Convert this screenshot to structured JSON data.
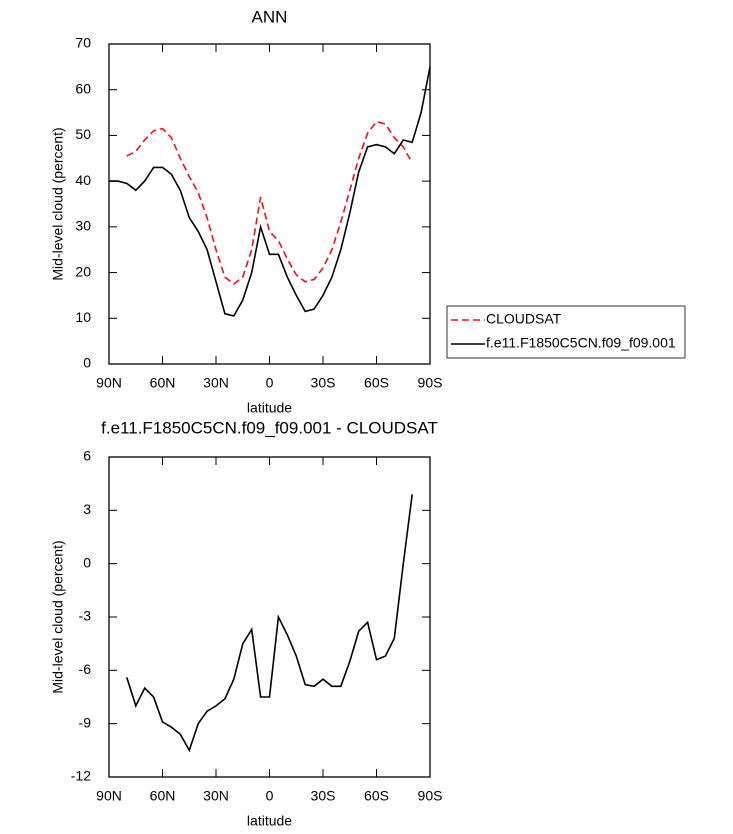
{
  "chart_data": [
    {
      "type": "line",
      "title": "ANN",
      "xlabel": "latitude",
      "ylabel": "Mid-level cloud (percent)",
      "x": [
        90,
        85,
        80,
        75,
        70,
        65,
        60,
        55,
        50,
        45,
        40,
        35,
        30,
        25,
        20,
        15,
        10,
        5,
        0,
        -5,
        -10,
        -15,
        -20,
        -25,
        -30,
        -35,
        -40,
        -45,
        -50,
        -55,
        -60,
        -65,
        -70,
        -75,
        -80,
        -85,
        -90
      ],
      "series": [
        {
          "name": "CLOUDSAT",
          "color": "#e8141c",
          "dash": true,
          "values": [
            null,
            null,
            45.5,
            46.5,
            49,
            51,
            51.5,
            49.5,
            45,
            41,
            37.5,
            32,
            25,
            19,
            17.5,
            19,
            25,
            36.5,
            29,
            27,
            23,
            19.5,
            18,
            18.5,
            21,
            25,
            31,
            38,
            45,
            50.5,
            53,
            52.5,
            49.5,
            47.5,
            44,
            null,
            null
          ]
        },
        {
          "name": "f.e11.F1850C5CN.f09_f09.001",
          "color": "#000000",
          "dash": false,
          "values": [
            40,
            40,
            39.5,
            38,
            40,
            43,
            43,
            41.5,
            38,
            32,
            29,
            25,
            18,
            11,
            10.5,
            14,
            20,
            30,
            24,
            24,
            19,
            15,
            11.5,
            12,
            15,
            19,
            25,
            33,
            42,
            47.5,
            48,
            47.5,
            46,
            49,
            48.5,
            55,
            65
          ]
        }
      ],
      "xlim": [
        90,
        -90
      ],
      "xticks": [
        {
          "value": 90,
          "label": "90N"
        },
        {
          "value": 60,
          "label": "60N"
        },
        {
          "value": 30,
          "label": "30N"
        },
        0,
        {
          "value": -30,
          "label": "30S"
        },
        {
          "value": -60,
          "label": "60S"
        },
        {
          "value": -90,
          "label": "90S"
        }
      ],
      "ylim": [
        0,
        70
      ],
      "yticks": [
        0,
        10,
        20,
        30,
        40,
        50,
        60,
        70
      ],
      "legend": "right"
    },
    {
      "type": "line",
      "title": "f.e11.F1850C5CN.f09_f09.001 - CLOUDSAT",
      "xlabel": "latitude",
      "ylabel": "Mid-level cloud (percent)",
      "x": [
        80,
        75,
        70,
        65,
        60,
        55,
        50,
        45,
        40,
        35,
        30,
        25,
        20,
        15,
        10,
        5,
        0,
        -5,
        -10,
        -15,
        -20,
        -25,
        -30,
        -35,
        -40,
        -45,
        -50,
        -55,
        -60,
        -65,
        -70,
        -75,
        -80
      ],
      "series": [
        {
          "color": "#000000",
          "dash": false,
          "values": [
            -6.4,
            -8.0,
            -7.0,
            -7.5,
            -8.9,
            -9.2,
            -9.6,
            -10.5,
            -9.0,
            -8.3,
            -8.0,
            -7.6,
            -6.5,
            -4.5,
            -3.7,
            -7.5,
            -7.5,
            -3.0,
            -4.0,
            -5.2,
            -6.8,
            -6.9,
            -6.5,
            -6.9,
            -6.9,
            -5.5,
            -3.8,
            -3.3,
            -5.4,
            -5.2,
            -4.2,
            0,
            3.9
          ]
        }
      ],
      "xlim": [
        90,
        -90
      ],
      "xticks": [
        {
          "value": 90,
          "label": "90N"
        },
        {
          "value": 60,
          "label": "60N"
        },
        {
          "value": 30,
          "label": "30N"
        },
        0,
        {
          "value": -30,
          "label": "30S"
        },
        {
          "value": -60,
          "label": "60S"
        },
        {
          "value": -90,
          "label": "90S"
        }
      ],
      "ylim": [
        -12,
        6
      ],
      "yticks": [
        -12,
        -9,
        -6,
        -3,
        0,
        3,
        6
      ]
    }
  ]
}
